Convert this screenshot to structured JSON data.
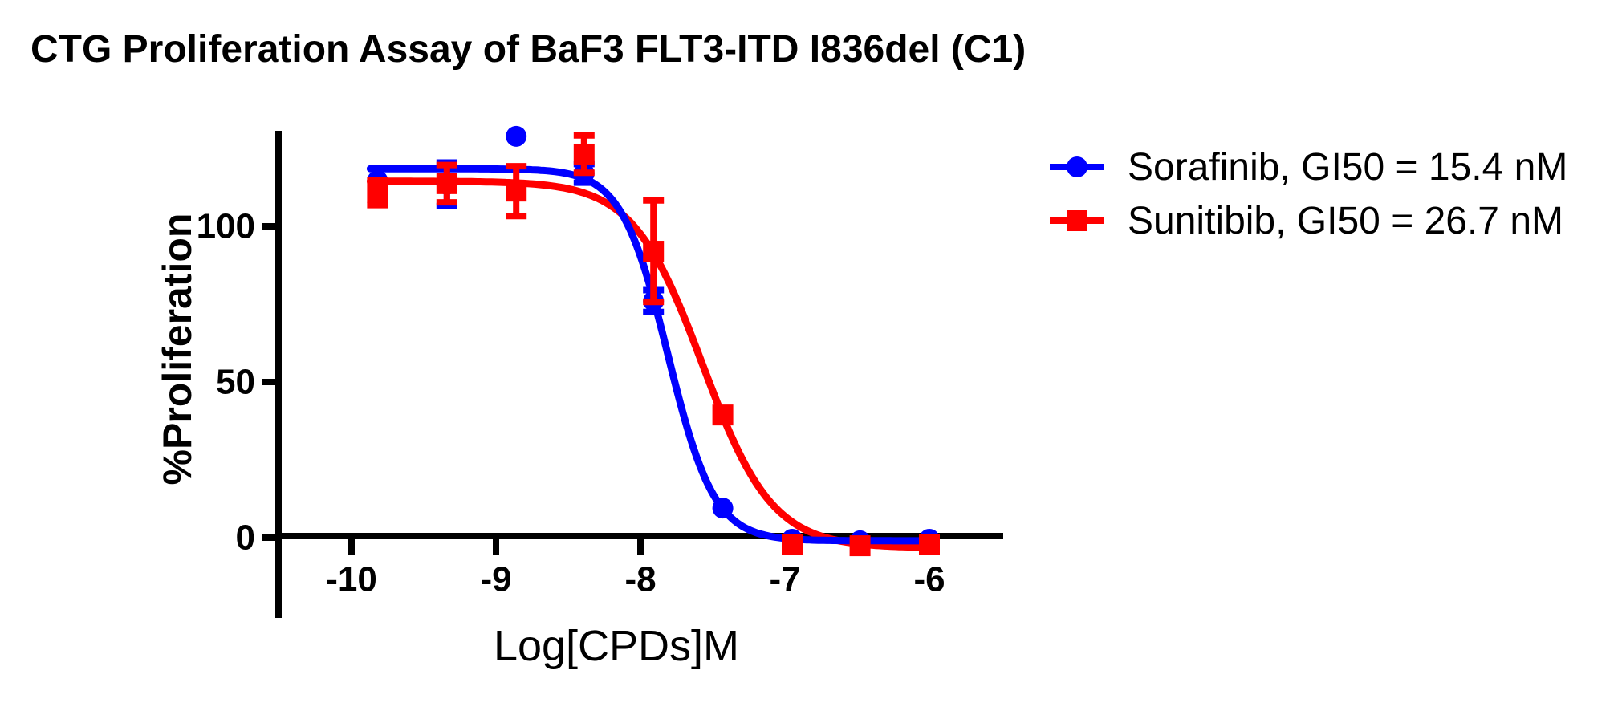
{
  "title": "CTG Proliferation Assay of BaF3 FLT3-ITD I836del (C1)",
  "colors": {
    "sorafinib_blue": "#0000FF",
    "sunitibib_red": "#FF0000",
    "axis_black": "#000000",
    "background": "#FFFFFF"
  },
  "legend": {
    "items": [
      {
        "label": "Sorafinib, GI50 = 15.4 nM",
        "marker": "circle",
        "color": "#0000FF"
      },
      {
        "label": "Sunitibib, GI50 = 26.7 nM",
        "marker": "square",
        "color": "#FF0000"
      }
    ]
  },
  "chart_data": {
    "type": "scatter",
    "subtype": "dose-response curves with error bars and sigmoidal fits",
    "title": "CTG Proliferation Assay of BaF3 FLT3-ITD I836del (C1)",
    "xlabel": "Log[CPDs]M",
    "ylabel": "%Proliferation",
    "x_ticks": [
      -10,
      -9,
      -8,
      -7,
      -6
    ],
    "y_ticks": [
      0,
      50,
      100
    ],
    "xlim": [
      -10.5,
      -5.5
    ],
    "ylim": [
      -26,
      131
    ],
    "grid": false,
    "legend_position": "right-top",
    "x": [
      -9.82,
      -9.34,
      -8.86,
      -8.39,
      -7.91,
      -7.43,
      -6.95,
      -6.48,
      -6.0
    ],
    "series": [
      {
        "name": "Sorafinib",
        "gi50_label": "GI50 = 15.4 nM",
        "color": "#0000FF",
        "marker": "circle",
        "values": [
          114.7,
          113.5,
          128.9,
          117.0,
          76.0,
          9.5,
          -0.5,
          -1.0,
          -0.5
        ],
        "sd": [
          0,
          7.0,
          0,
          3.0,
          3.5,
          0,
          0,
          0,
          0
        ],
        "fit": {
          "top": 118.5,
          "bottom": -1.0,
          "log_gi50": -7.81,
          "hill": 2.7
        }
      },
      {
        "name": "Sunitibib",
        "gi50_label": "GI50 = 26.7 nM",
        "color": "#FF0000",
        "marker": "square",
        "values": [
          110.8,
          113.7,
          111.3,
          123.2,
          92.0,
          39.4,
          -2.1,
          -2.6,
          -2.1
        ],
        "sd": [
          4.0,
          6.0,
          8.0,
          6.0,
          16.3,
          0,
          0,
          0,
          0
        ],
        "fit": {
          "top": 114.5,
          "bottom": -3.3,
          "log_gi50": -7.57,
          "hill": 1.8
        }
      }
    ]
  }
}
